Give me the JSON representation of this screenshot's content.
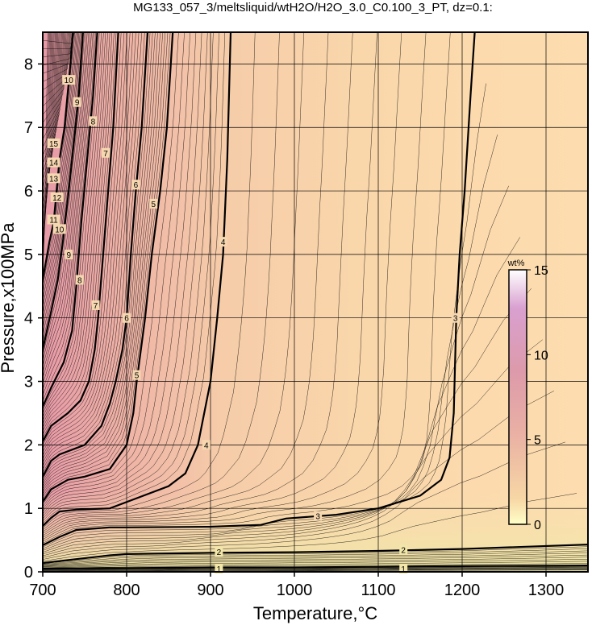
{
  "chart_data": {
    "type": "heatmap",
    "title": "MG133_057_3/meltsliquid/wtH2O/H2O_3.0_C0.100_3_PT, dz=0.1:",
    "xlabel": "Temperature,°C",
    "ylabel": "Pressure,x100MPa",
    "xlim": [
      700,
      1350
    ],
    "ylim": [
      0,
      8.5
    ],
    "x_ticks": [
      700,
      800,
      900,
      1000,
      1100,
      1200,
      1300
    ],
    "y_ticks": [
      0,
      1,
      2,
      3,
      4,
      5,
      6,
      7,
      8
    ],
    "grid": true,
    "colorbar": {
      "unit": "wt%",
      "range": [
        0,
        15
      ],
      "ticks": [
        0,
        5,
        10,
        15
      ],
      "colors": [
        "#ffffc8",
        "#f4d9a6",
        "#f0b8a6",
        "#e39aa6",
        "#d489b8",
        "#ffffff"
      ]
    },
    "major_contours": [
      {
        "value": 1,
        "points": [
          [
            700,
            0.05
          ],
          [
            800,
            0.06
          ],
          [
            900,
            0.07
          ],
          [
            1000,
            0.07
          ],
          [
            1100,
            0.08
          ],
          [
            1200,
            0.09
          ],
          [
            1350,
            0.1
          ]
        ]
      },
      {
        "value": 2,
        "points": [
          [
            700,
            0.14
          ],
          [
            740,
            0.2
          ],
          [
            780,
            0.26
          ],
          [
            800,
            0.28
          ],
          [
            900,
            0.3
          ],
          [
            1000,
            0.31
          ],
          [
            1100,
            0.33
          ],
          [
            1200,
            0.36
          ],
          [
            1350,
            0.43
          ]
        ]
      },
      {
        "value": 3,
        "points": [
          [
            700,
            0.42
          ],
          [
            720,
            0.55
          ],
          [
            740,
            0.66
          ],
          [
            760,
            0.68
          ],
          [
            780,
            0.7
          ],
          [
            800,
            0.7
          ],
          [
            900,
            0.71
          ],
          [
            960,
            0.74
          ],
          [
            990,
            0.84
          ],
          [
            1050,
            0.9
          ],
          [
            1100,
            1.0
          ],
          [
            1150,
            1.2
          ],
          [
            1175,
            1.45
          ],
          [
            1185,
            1.8
          ],
          [
            1190,
            2.5
          ],
          [
            1193,
            4.0
          ],
          [
            1197,
            5.0
          ],
          [
            1203,
            6.0
          ],
          [
            1210,
            7.5
          ],
          [
            1215,
            8.5
          ]
        ]
      },
      {
        "value": 4,
        "points": [
          [
            700,
            0.72
          ],
          [
            710,
            0.85
          ],
          [
            720,
            0.95
          ],
          [
            740,
            0.98
          ],
          [
            780,
            1.0
          ],
          [
            810,
            1.15
          ],
          [
            850,
            1.35
          ],
          [
            870,
            1.55
          ],
          [
            885,
            2.0
          ],
          [
            900,
            3.0
          ],
          [
            908,
            4.0
          ],
          [
            915,
            5.0
          ],
          [
            920,
            6.5
          ],
          [
            922,
            7.5
          ],
          [
            924,
            8.5
          ]
        ]
      },
      {
        "value": 5,
        "points": [
          [
            700,
            1.1
          ],
          [
            710,
            1.3
          ],
          [
            730,
            1.45
          ],
          [
            750,
            1.5
          ],
          [
            780,
            1.62
          ],
          [
            800,
            2.0
          ],
          [
            808,
            2.5
          ],
          [
            812,
            3.0
          ],
          [
            822,
            4.0
          ],
          [
            830,
            5.0
          ],
          [
            840,
            6.0
          ],
          [
            848,
            7.0
          ],
          [
            855,
            8.5
          ]
        ]
      },
      {
        "value": 6,
        "points": [
          [
            700,
            1.5
          ],
          [
            710,
            1.75
          ],
          [
            720,
            1.85
          ],
          [
            750,
            2.0
          ],
          [
            770,
            2.3
          ],
          [
            780,
            2.65
          ],
          [
            787,
            3.0
          ],
          [
            795,
            3.5
          ],
          [
            800,
            4.0
          ],
          [
            805,
            5.0
          ],
          [
            811,
            6.0
          ],
          [
            818,
            7.0
          ],
          [
            825,
            8.5
          ]
        ]
      },
      {
        "value": 7,
        "points": [
          [
            700,
            2.05
          ],
          [
            710,
            2.3
          ],
          [
            730,
            2.5
          ],
          [
            745,
            2.7
          ],
          [
            755,
            3.0
          ],
          [
            762,
            3.5
          ],
          [
            766,
            4.0
          ],
          [
            772,
            5.0
          ],
          [
            778,
            6.0
          ],
          [
            784,
            7.0
          ],
          [
            790,
            8.5
          ]
        ]
      },
      {
        "value": 8,
        "points": [
          [
            700,
            2.6
          ],
          [
            710,
            2.9
          ],
          [
            725,
            3.3
          ],
          [
            735,
            3.8
          ],
          [
            740,
            4.5
          ],
          [
            746,
            5.5
          ],
          [
            753,
            6.5
          ],
          [
            760,
            7.5
          ],
          [
            765,
            8.5
          ]
        ]
      },
      {
        "value": 9,
        "points": [
          [
            700,
            3.5
          ],
          [
            710,
            4.1
          ],
          [
            718,
            4.6
          ],
          [
            724,
            5.2
          ],
          [
            731,
            6.0
          ],
          [
            739,
            7.0
          ],
          [
            743,
            7.5
          ],
          [
            748,
            8.5
          ]
        ]
      },
      {
        "value": 10,
        "points": [
          [
            700,
            4.6
          ],
          [
            708,
            5.2
          ],
          [
            713,
            5.5
          ],
          [
            720,
            6.5
          ],
          [
            726,
            7.0
          ],
          [
            733,
            8.0
          ],
          [
            736,
            8.5
          ]
        ]
      }
    ],
    "contour_labels": [
      {
        "text": "1",
        "at": [
          910,
          0.05
        ]
      },
      {
        "text": "1",
        "at": [
          1130,
          0.05
        ]
      },
      {
        "text": "2",
        "at": [
          910,
          0.32
        ]
      },
      {
        "text": "2",
        "at": [
          1130,
          0.35
        ]
      },
      {
        "text": "3",
        "at": [
          1028,
          0.88
        ]
      },
      {
        "text": "3",
        "at": [
          1192,
          4.0
        ]
      },
      {
        "text": "4",
        "at": [
          895,
          2.0
        ]
      },
      {
        "text": "4",
        "at": [
          915,
          5.2
        ]
      },
      {
        "text": "5",
        "at": [
          812,
          3.1
        ]
      },
      {
        "text": "5",
        "at": [
          832,
          5.8
        ]
      },
      {
        "text": "6",
        "at": [
          800,
          4.0
        ]
      },
      {
        "text": "6",
        "at": [
          811,
          6.1
        ]
      },
      {
        "text": "7",
        "at": [
          763,
          4.2
        ]
      },
      {
        "text": "7",
        "at": [
          775,
          6.6
        ]
      },
      {
        "text": "8",
        "at": [
          744,
          4.6
        ]
      },
      {
        "text": "8",
        "at": [
          760,
          7.1
        ]
      },
      {
        "text": "9",
        "at": [
          731,
          5.0
        ]
      },
      {
        "text": "9",
        "at": [
          741,
          7.4
        ]
      },
      {
        "text": "10",
        "at": [
          720,
          5.4
        ]
      },
      {
        "text": "10",
        "at": [
          731,
          7.75
        ]
      },
      {
        "text": "11",
        "at": [
          713,
          5.55
        ]
      },
      {
        "text": "12",
        "at": [
          717,
          5.9
        ]
      },
      {
        "text": "13",
        "at": [
          713,
          6.2
        ]
      },
      {
        "text": "14",
        "at": [
          713,
          6.45
        ]
      },
      {
        "text": "15",
        "at": [
          713,
          6.75
        ]
      }
    ]
  }
}
